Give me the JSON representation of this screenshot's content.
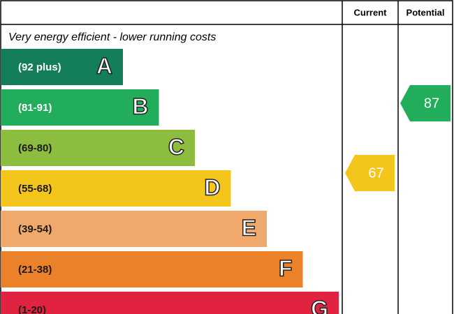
{
  "header": {
    "current": "Current",
    "potential": "Potential"
  },
  "caption": "Very energy efficient - lower running costs",
  "bands": [
    {
      "range": "(92 plus)",
      "letter": "A",
      "color": "#137e58",
      "text_color": "#ffffff"
    },
    {
      "range": "(81-91)",
      "letter": "B",
      "color": "#22ad5a",
      "text_color": "#ffffff"
    },
    {
      "range": "(69-80)",
      "letter": "C",
      "color": "#8dbd3f",
      "text_color": "#1a1a1a"
    },
    {
      "range": "(55-68)",
      "letter": "D",
      "color": "#f4c51b",
      "text_color": "#1a1a1a"
    },
    {
      "range": "(39-54)",
      "letter": "E",
      "color": "#f0a96b",
      "text_color": "#1a1a1a"
    },
    {
      "range": "(21-38)",
      "letter": "F",
      "color": "#eb8128",
      "text_color": "#1a1a1a"
    },
    {
      "range": "(1-20)",
      "letter": "G",
      "color": "#e1233f",
      "text_color": "#1a1a1a"
    }
  ],
  "current": {
    "value": 67,
    "color": "#f4c51b"
  },
  "potential": {
    "value": 87,
    "color": "#22ad5a"
  }
}
